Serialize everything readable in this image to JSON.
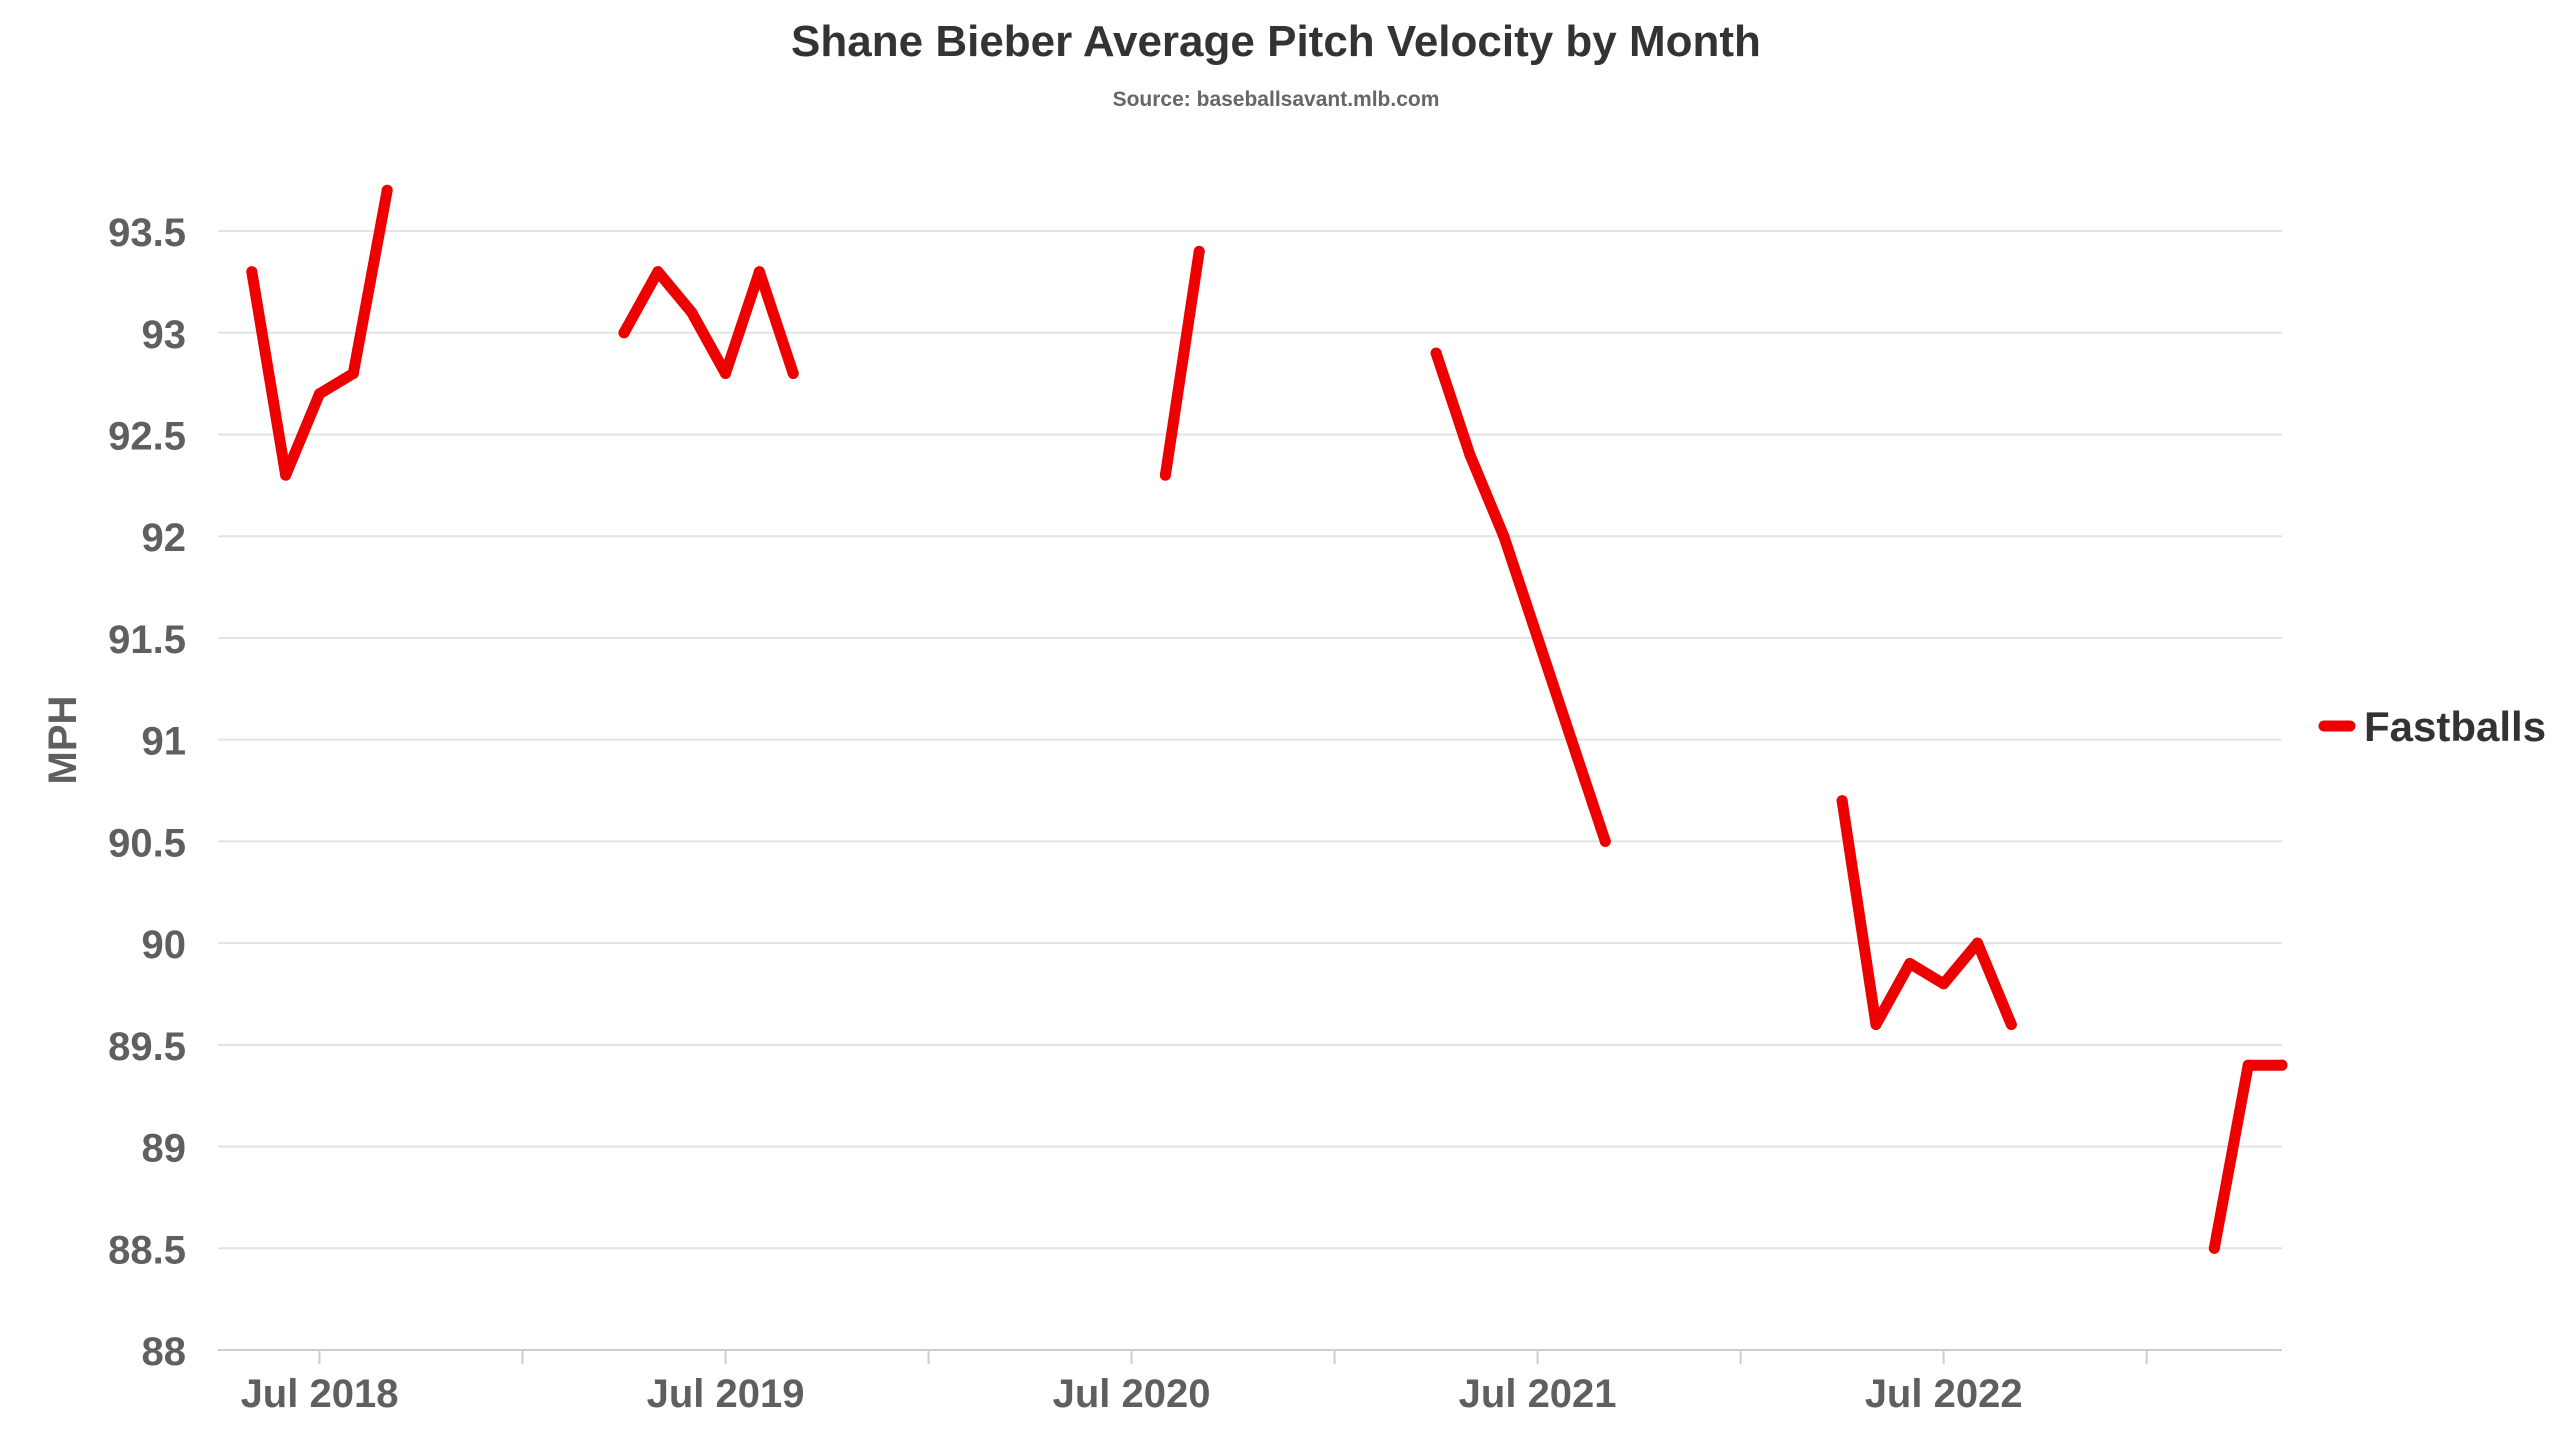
{
  "chart_data": {
    "type": "line",
    "title": "Shane Bieber Average Pitch Velocity by Month",
    "subtitle": "Source: baseballsavant.mlb.com",
    "xlabel": "",
    "ylabel": "MPH",
    "ylim": [
      88,
      93.8
    ],
    "yticks": [
      88,
      88.5,
      89,
      89.5,
      90,
      90.5,
      91,
      91.5,
      92,
      92.5,
      93,
      93.5
    ],
    "xlim": [
      "2018-04",
      "2023-05"
    ],
    "xticks": [
      {
        "label": "Jul 2018",
        "at": "2018-07"
      },
      {
        "label": "Jul 2019",
        "at": "2019-07"
      },
      {
        "label": "Jul 2020",
        "at": "2020-07"
      },
      {
        "label": "Jul 2021",
        "at": "2021-07"
      },
      {
        "label": "Jul 2022",
        "at": "2022-07"
      }
    ],
    "minor_ticks": [
      "2019-01",
      "2020-01",
      "2021-01",
      "2022-01",
      "2023-01"
    ],
    "grid": true,
    "legend": "right",
    "series": [
      {
        "name": "Fastballs",
        "color": "#ee0000",
        "segments": [
          {
            "x": [
              "2018-05",
              "2018-06",
              "2018-07",
              "2018-08",
              "2018-09"
            ],
            "y": [
              93.3,
              92.3,
              92.7,
              92.8,
              93.7
            ]
          },
          {
            "x": [
              "2019-04",
              "2019-05",
              "2019-06",
              "2019-07",
              "2019-08",
              "2019-09"
            ],
            "y": [
              93.0,
              93.3,
              93.1,
              92.8,
              93.3,
              92.8
            ]
          },
          {
            "x": [
              "2020-08",
              "2020-09"
            ],
            "y": [
              92.3,
              93.4
            ]
          },
          {
            "x": [
              "2021-04",
              "2021-05",
              "2021-06",
              "2021-07",
              "2021-08",
              "2021-09"
            ],
            "y": [
              92.9,
              92.4,
              92.0,
              91.5,
              91.0,
              90.5
            ]
          },
          {
            "x": [
              "2022-04",
              "2022-05",
              "2022-06",
              "2022-07",
              "2022-08",
              "2022-09"
            ],
            "y": [
              90.7,
              89.6,
              89.9,
              89.8,
              90.0,
              89.6
            ]
          },
          {
            "x": [
              "2023-03",
              "2023-04",
              "2023-05"
            ],
            "y": [
              88.5,
              89.4,
              89.4
            ]
          }
        ]
      }
    ]
  }
}
